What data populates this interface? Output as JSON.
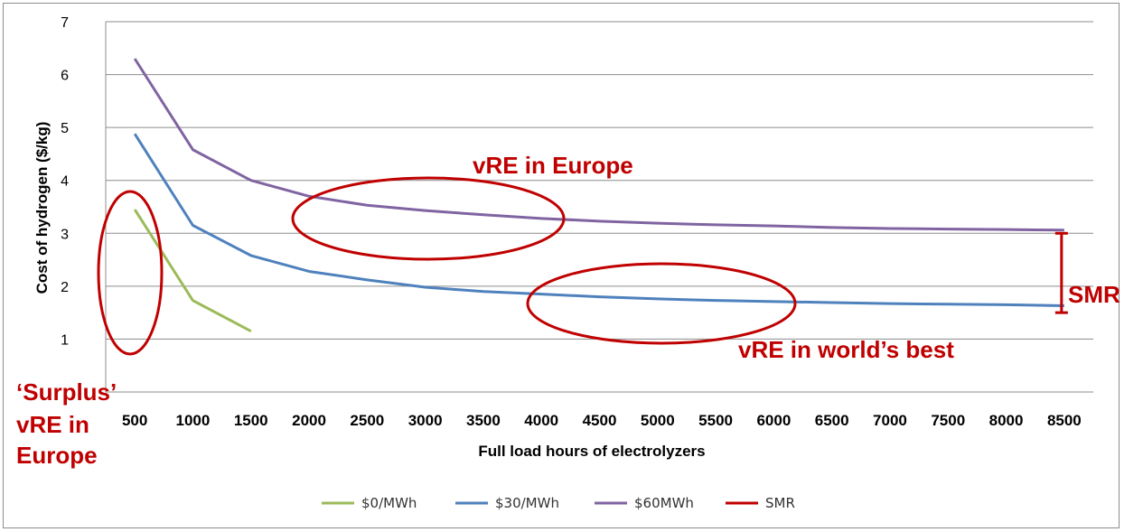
{
  "chart_data": {
    "type": "line",
    "title": "",
    "xlabel": "Full load hours of electrolyzers",
    "ylabel": "Cost of hydrogen ($/kg)",
    "x": [
      500,
      1000,
      1500,
      2000,
      2500,
      3000,
      3500,
      4000,
      4500,
      5000,
      5500,
      6000,
      6500,
      7000,
      7500,
      8000,
      8500
    ],
    "yticks": [
      "1",
      "2",
      "3",
      "4",
      "5",
      "6",
      "7"
    ],
    "ylim": [
      0,
      7
    ],
    "grid": true,
    "legend_position": "bottom",
    "series": [
      {
        "name": "$0/MWh",
        "color": "#9bbb59",
        "x": [
          500,
          1000,
          1500
        ],
        "values": [
          3.45,
          1.73,
          1.15
        ]
      },
      {
        "name": "$30/MWh",
        "color": "#4f81bd",
        "x": [
          500,
          1000,
          1500,
          2000,
          2500,
          3000,
          3500,
          4000,
          4500,
          5000,
          5500,
          6000,
          6500,
          7000,
          7500,
          8000,
          8500
        ],
        "values": [
          4.88,
          3.15,
          2.58,
          2.28,
          2.12,
          1.98,
          1.9,
          1.85,
          1.8,
          1.76,
          1.73,
          1.71,
          1.69,
          1.67,
          1.66,
          1.65,
          1.63
        ]
      },
      {
        "name": "$60MWh",
        "color": "#8064a2",
        "x": [
          500,
          1000,
          1500,
          2000,
          2500,
          3000,
          3500,
          4000,
          4500,
          5000,
          5500,
          6000,
          6500,
          7000,
          7500,
          8000,
          8500
        ],
        "values": [
          6.3,
          4.58,
          4.0,
          3.7,
          3.53,
          3.43,
          3.35,
          3.28,
          3.23,
          3.19,
          3.16,
          3.14,
          3.11,
          3.09,
          3.08,
          3.07,
          3.06
        ]
      },
      {
        "name": "SMR",
        "color": "#c00000",
        "x": [
          8500,
          8500
        ],
        "values": [
          1.5,
          3.0
        ]
      }
    ],
    "annotations": {
      "surplus": [
        "‘Surplus’",
        "vRE in",
        "Europe"
      ],
      "europe": "vRE in Europe",
      "best": "vRE in world’s best",
      "smr": "SMR"
    }
  }
}
